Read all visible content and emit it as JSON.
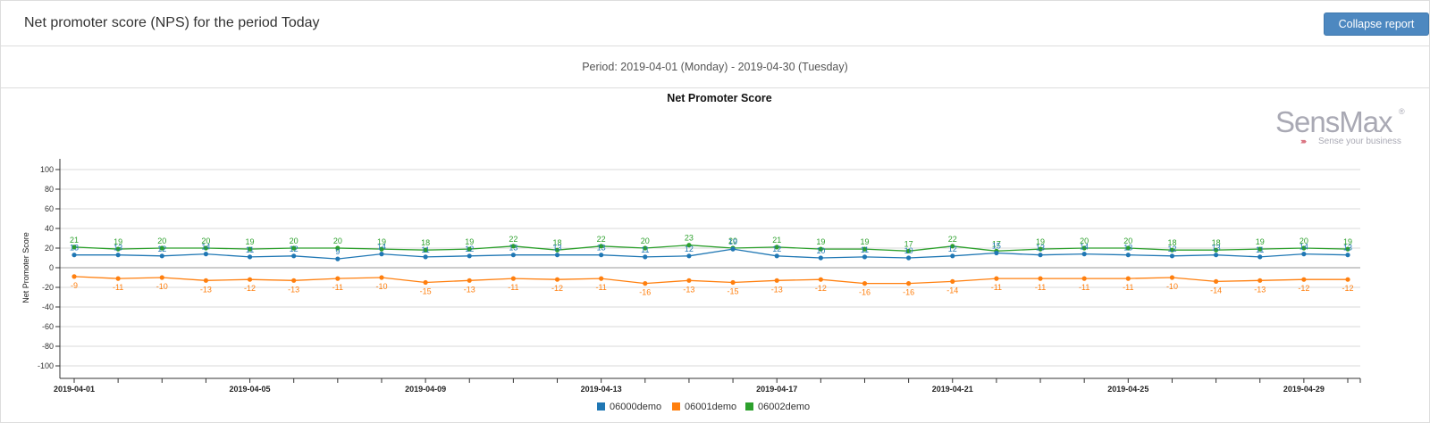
{
  "header": {
    "title": "Net promoter score (NPS) for the period Today",
    "collapse_label": "Collapse report"
  },
  "period_text": "Period: 2019-04-01 (Monday) - 2019-04-30 (Tuesday)",
  "logo": {
    "name": "SensMax",
    "registered": "®",
    "tagline": "Sense your business",
    "arrows": "›››››"
  },
  "colors": {
    "06000demo": "#1f77b4",
    "06001demo": "#ff7f0e",
    "06002demo": "#2ca02c",
    "button": "#4d88c0"
  },
  "chart_data": {
    "type": "line",
    "title": "Net Promoter Score",
    "xlabel": "",
    "ylabel": "Net Promoter Score",
    "ylim": [
      -100,
      100
    ],
    "yticks": [
      100,
      80,
      60,
      40,
      20,
      0,
      -20,
      -40,
      -60,
      -80,
      -100
    ],
    "grid": true,
    "legend_position": "bottom",
    "x": [
      "2019-04-01",
      "2019-04-02",
      "2019-04-03",
      "2019-04-04",
      "2019-04-05",
      "2019-04-06",
      "2019-04-07",
      "2019-04-08",
      "2019-04-09",
      "2019-04-10",
      "2019-04-11",
      "2019-04-12",
      "2019-04-13",
      "2019-04-14",
      "2019-04-15",
      "2019-04-16",
      "2019-04-17",
      "2019-04-18",
      "2019-04-19",
      "2019-04-20",
      "2019-04-21",
      "2019-04-22",
      "2019-04-23",
      "2019-04-24",
      "2019-04-25",
      "2019-04-26",
      "2019-04-27",
      "2019-04-28",
      "2019-04-29",
      "2019-04-30"
    ],
    "xtick_labels": [
      "2019-04-01",
      "2019-04-05",
      "2019-04-09",
      "2019-04-13",
      "2019-04-17",
      "2019-04-21",
      "2019-04-25",
      "2019-04-29"
    ],
    "series": [
      {
        "name": "06000demo",
        "values": [
          13,
          13,
          12,
          14,
          11,
          12,
          9,
          14,
          11,
          12,
          13,
          13,
          13,
          11,
          12,
          19,
          12,
          10,
          11,
          10,
          12,
          15,
          13,
          14,
          13,
          12,
          13,
          11,
          14,
          13
        ]
      },
      {
        "name": "06001demo",
        "values": [
          -9,
          -11,
          -10,
          -13,
          -12,
          -13,
          -11,
          -10,
          -15,
          -13,
          -11,
          -12,
          -11,
          -16,
          -13,
          -15,
          -13,
          -12,
          -16,
          -16,
          -14,
          -11,
          -11,
          -11,
          -11,
          -10,
          -14,
          -13,
          -12,
          -12
        ]
      },
      {
        "name": "06002demo",
        "values": [
          21,
          19,
          20,
          20,
          19,
          20,
          20,
          19,
          18,
          19,
          22,
          18,
          22,
          20,
          23,
          20,
          21,
          19,
          19,
          17,
          22,
          17,
          19,
          20,
          20,
          18,
          18,
          19,
          20,
          19
        ]
      }
    ]
  }
}
